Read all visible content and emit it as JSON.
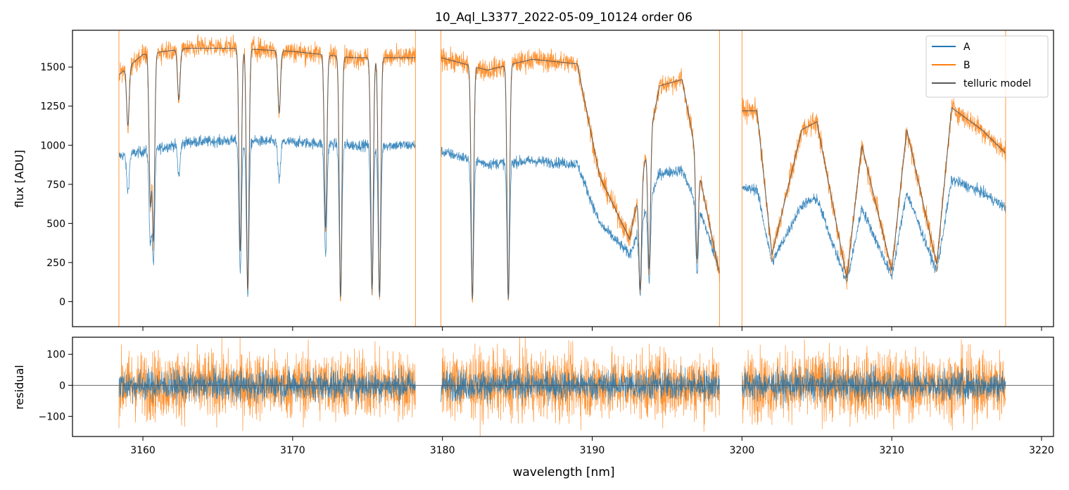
{
  "chart_data": [
    {
      "type": "line",
      "panel": "top",
      "title": "10_Aql_L3377_2022-05-09_10124  order 06",
      "xlabel": "",
      "ylabel": "flux [ADU]",
      "xlim": [
        3155.3,
        3220.8
      ],
      "ylim": [
        -160,
        1735
      ],
      "yticks": [
        0,
        250,
        500,
        750,
        1000,
        1250,
        1500
      ],
      "ytick_labels": [
        "0",
        "250",
        "500",
        "750",
        "1000",
        "1250",
        "1500"
      ],
      "xticks": [
        3160,
        3170,
        3180,
        3190,
        3200,
        3210,
        3220
      ],
      "legend": {
        "position": "top-right",
        "entries": [
          {
            "label": "A",
            "color": "#1f77b4"
          },
          {
            "label": "B",
            "color": "#ff7f0e"
          },
          {
            "label": "telluric model",
            "color": "#595959"
          }
        ]
      },
      "segments": [
        {
          "xmin": 3158.4,
          "xmax": 3178.2
        },
        {
          "xmin": 3179.9,
          "xmax": 3198.5
        },
        {
          "xmin": 3200.0,
          "xmax": 3217.6
        }
      ],
      "series": [
        {
          "name": "A",
          "color": "#1f77b4",
          "continuum_x": [
            3158.4,
            3160,
            3163,
            3166,
            3170,
            3174,
            3178.2,
            3179.9,
            3183,
            3186,
            3189,
            3190.5,
            3192.5,
            3194.5,
            3196,
            3197.5,
            3198.5,
            3200.0,
            3201,
            3202,
            3204,
            3205,
            3207,
            3208,
            3210,
            3211,
            3213,
            3214,
            3216,
            3217.6
          ],
          "continuum_y": [
            930,
            960,
            1020,
            1030,
            1020,
            1000,
            1000,
            960,
            880,
            900,
            880,
            500,
            300,
            820,
            840,
            500,
            200,
            720,
            720,
            250,
            620,
            660,
            120,
            600,
            160,
            700,
            190,
            780,
            700,
            600
          ],
          "noise": 18
        },
        {
          "name": "B",
          "color": "#ff7f0e",
          "continuum_x": [
            3158.4,
            3160,
            3163,
            3166,
            3170,
            3174,
            3178.2,
            3179.9,
            3183,
            3186,
            3189,
            3190.5,
            3192.5,
            3194.5,
            3196,
            3197.5,
            3198.5,
            3200.0,
            3201,
            3202,
            3204,
            3205,
            3207,
            3208,
            3210,
            3211,
            3213,
            3214,
            3216,
            3217.6
          ],
          "continuum_y": [
            1450,
            1580,
            1630,
            1630,
            1600,
            1560,
            1560,
            1560,
            1480,
            1550,
            1520,
            800,
            400,
            1380,
            1420,
            650,
            180,
            1220,
            1220,
            300,
            1100,
            1150,
            150,
            1000,
            200,
            1100,
            240,
            1240,
            1100,
            950
          ],
          "noise": 35
        },
        {
          "name": "telluric model",
          "color": "#595959",
          "continuum_x": [
            3158.4,
            3160,
            3163,
            3166,
            3170,
            3174,
            3178.2,
            3179.9,
            3183,
            3186,
            3189,
            3190.5,
            3192.5,
            3194.5,
            3196,
            3197.5,
            3198.5,
            3200.0,
            3201,
            3202,
            3204,
            3205,
            3207,
            3208,
            3210,
            3211,
            3213,
            3214,
            3216,
            3217.6
          ],
          "continuum_y": [
            1450,
            1580,
            1620,
            1620,
            1600,
            1560,
            1560,
            1560,
            1480,
            1550,
            1520,
            800,
            400,
            1380,
            1420,
            650,
            180,
            1220,
            1220,
            300,
            1100,
            1150,
            150,
            1000,
            200,
            1100,
            240,
            1240,
            1100,
            950
          ],
          "noise": 0
        }
      ],
      "absorption_lines": [
        {
          "x": 3159.0,
          "depth": 0.25
        },
        {
          "x": 3160.5,
          "depth": 0.6
        },
        {
          "x": 3160.7,
          "depth": 0.75
        },
        {
          "x": 3162.4,
          "depth": 0.2
        },
        {
          "x": 3166.5,
          "depth": 0.8
        },
        {
          "x": 3167.0,
          "depth": 0.95
        },
        {
          "x": 3169.1,
          "depth": 0.25
        },
        {
          "x": 3172.2,
          "depth": 0.7
        },
        {
          "x": 3173.2,
          "depth": 0.98
        },
        {
          "x": 3175.3,
          "depth": 0.95
        },
        {
          "x": 3175.8,
          "depth": 0.98
        },
        {
          "x": 3182.0,
          "depth": 0.99
        },
        {
          "x": 3184.4,
          "depth": 0.99
        },
        {
          "x": 3193.2,
          "depth": 0.9
        },
        {
          "x": 3193.8,
          "depth": 0.8
        },
        {
          "x": 3197.0,
          "depth": 0.7
        }
      ],
      "spikes": [
        3158.4,
        3178.2,
        3179.9,
        3198.5,
        3200.0,
        3217.6
      ]
    },
    {
      "type": "line",
      "panel": "bottom",
      "xlabel": "wavelength [nm]",
      "ylabel": "residual",
      "xlim": [
        3155.3,
        3220.8
      ],
      "ylim": [
        -165,
        155
      ],
      "xticks": [
        3160,
        3170,
        3180,
        3190,
        3200,
        3210,
        3220
      ],
      "xtick_labels": [
        "3160",
        "3170",
        "3180",
        "3190",
        "3200",
        "3210",
        "3220"
      ],
      "yticks": [
        -100,
        0,
        100
      ],
      "ytick_labels": [
        "−100",
        "0",
        "100"
      ],
      "zero_line": 0,
      "series": [
        {
          "name": "A residual",
          "color": "#1f77b4",
          "amplitude": 25
        },
        {
          "name": "B residual",
          "color": "#ff7f0e",
          "amplitude": 55
        }
      ]
    }
  ]
}
